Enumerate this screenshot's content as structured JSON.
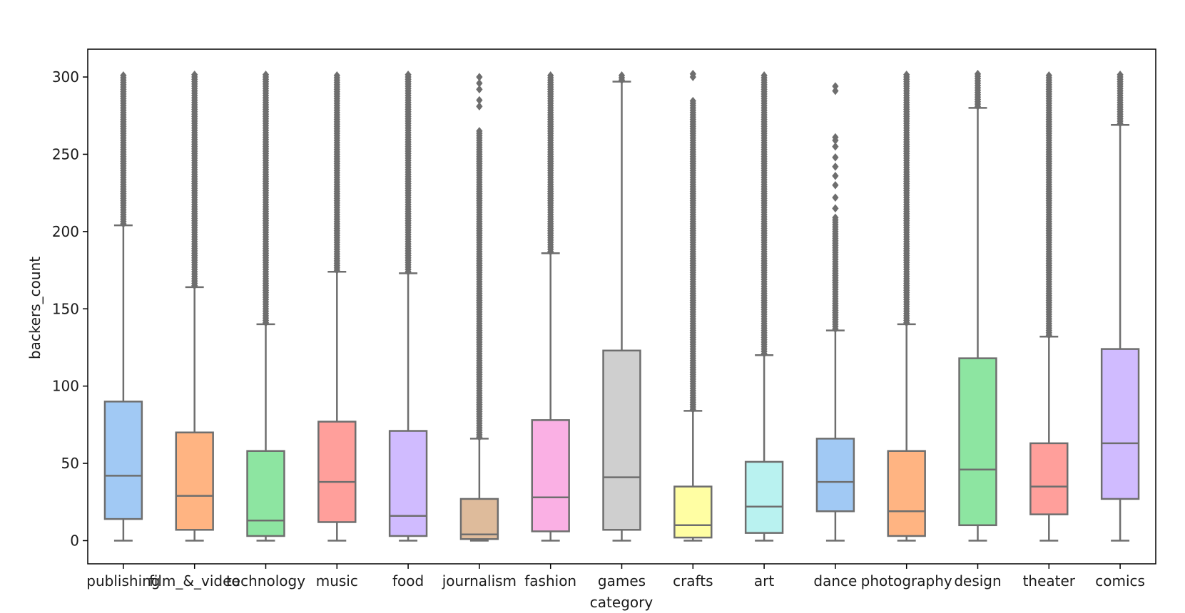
{
  "chart_data": {
    "type": "box",
    "title": "",
    "xlabel": "category",
    "ylabel": "backers_count",
    "ylim": [
      -15,
      318
    ],
    "yticks": [
      0,
      50,
      100,
      150,
      200,
      250,
      300
    ],
    "grid": false,
    "legend": "none",
    "colors": {
      "axis": "#000000",
      "box_edge": "#6e6e6e",
      "whisker": "#6e6e6e",
      "median": "#6e6e6e",
      "outlier": "#6e6e6e"
    },
    "categories": [
      "publishing",
      "film_&_video",
      "technology",
      "music",
      "food",
      "journalism",
      "fashion",
      "games",
      "crafts",
      "art",
      "dance",
      "photography",
      "design",
      "theater",
      "comics"
    ],
    "boxes": [
      {
        "category": "publishing",
        "color": "#a1c9f4",
        "whislo": 0,
        "q1": 14,
        "med": 42,
        "q3": 90,
        "whishi": 204,
        "outlier_ranges": [
          [
            205,
            302
          ]
        ],
        "outliers": []
      },
      {
        "category": "film_&_video",
        "color": "#ffb482",
        "whislo": 0,
        "q1": 7,
        "med": 29,
        "q3": 70,
        "whishi": 164,
        "outlier_ranges": [
          [
            165,
            302
          ]
        ],
        "outliers": []
      },
      {
        "category": "technology",
        "color": "#8de5a1",
        "whislo": 0,
        "q1": 3,
        "med": 13,
        "q3": 58,
        "whishi": 140,
        "outlier_ranges": [
          [
            141,
            302
          ]
        ],
        "outliers": []
      },
      {
        "category": "music",
        "color": "#ff9f9b",
        "whislo": 0,
        "q1": 12,
        "med": 38,
        "q3": 77,
        "whishi": 174,
        "outlier_ranges": [
          [
            175,
            302
          ]
        ],
        "outliers": []
      },
      {
        "category": "food",
        "color": "#d0bbff",
        "whislo": 0,
        "q1": 3,
        "med": 16,
        "q3": 71,
        "whishi": 173,
        "outlier_ranges": [
          [
            174,
            302
          ]
        ],
        "outliers": []
      },
      {
        "category": "journalism",
        "color": "#debb9b",
        "whislo": 0,
        "q1": 1,
        "med": 4,
        "q3": 27,
        "whishi": 66,
        "outlier_ranges": [
          [
            67,
            265
          ]
        ],
        "outliers": [
          281,
          285,
          292,
          296,
          300
        ]
      },
      {
        "category": "fashion",
        "color": "#fab0e4",
        "whislo": 0,
        "q1": 6,
        "med": 28,
        "q3": 78,
        "whishi": 186,
        "outlier_ranges": [
          [
            187,
            302
          ]
        ],
        "outliers": []
      },
      {
        "category": "games",
        "color": "#cfcfcf",
        "whislo": 0,
        "q1": 7,
        "med": 41,
        "q3": 123,
        "whishi": 297,
        "outlier_ranges": [
          [
            298,
            302
          ]
        ],
        "outliers": []
      },
      {
        "category": "crafts",
        "color": "#fffea3",
        "whislo": 0,
        "q1": 2,
        "med": 10,
        "q3": 35,
        "whishi": 84,
        "outlier_ranges": [
          [
            85,
            285
          ]
        ],
        "outliers": [
          300,
          302
        ]
      },
      {
        "category": "art",
        "color": "#b9f2f0",
        "whislo": 0,
        "q1": 5,
        "med": 22,
        "q3": 51,
        "whishi": 120,
        "outlier_ranges": [
          [
            121,
            302
          ]
        ],
        "outliers": []
      },
      {
        "category": "dance",
        "color": "#a1c9f4",
        "whislo": 0,
        "q1": 19,
        "med": 38,
        "q3": 66,
        "whishi": 136,
        "outlier_ranges": [
          [
            137,
            210
          ]
        ],
        "outliers": [
          215,
          222,
          230,
          236,
          242,
          248,
          255,
          259,
          261,
          291,
          294
        ]
      },
      {
        "category": "photography",
        "color": "#ffb482",
        "whislo": 0,
        "q1": 3,
        "med": 19,
        "q3": 58,
        "whishi": 140,
        "outlier_ranges": [
          [
            141,
            302
          ]
        ],
        "outliers": []
      },
      {
        "category": "design",
        "color": "#8de5a1",
        "whislo": 0,
        "q1": 10,
        "med": 46,
        "q3": 118,
        "whishi": 280,
        "outlier_ranges": [
          [
            281,
            302
          ]
        ],
        "outliers": []
      },
      {
        "category": "theater",
        "color": "#ff9f9b",
        "whislo": 0,
        "q1": 17,
        "med": 35,
        "q3": 63,
        "whishi": 132,
        "outlier_ranges": [
          [
            133,
            302
          ]
        ],
        "outliers": []
      },
      {
        "category": "comics",
        "color": "#d0bbff",
        "whislo": 0,
        "q1": 27,
        "med": 63,
        "q3": 124,
        "whishi": 269,
        "outlier_ranges": [
          [
            270,
            302
          ]
        ],
        "outliers": []
      }
    ]
  }
}
